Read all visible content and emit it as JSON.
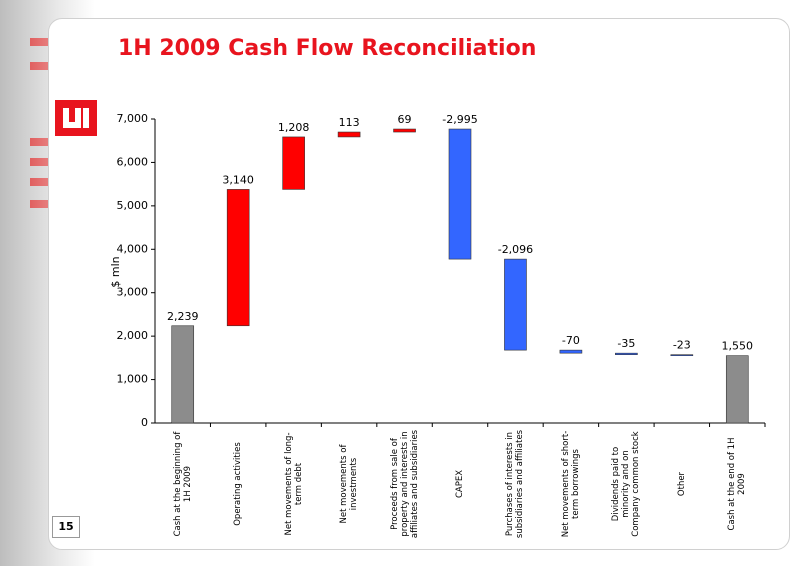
{
  "page_number": "15",
  "chart_data": {
    "type": "waterfall",
    "title": "1H 2009 Cash Flow Reconciliation",
    "y_label": "$ mln",
    "categories": [
      "Cash at the beginning of 1H 2009",
      "Operating activities",
      "Net movements of long-term debt",
      "Net movements of investments",
      "Proceeds from sale of property and interests in affiliates and subsidiaries",
      "CAPEX",
      "Purchases of interests in subsidiaries and affiliates",
      "Net movements of short-term borrowings",
      "Dividends paid to minority and on Company common stock",
      "Other",
      "Cash at the end of 1H 2009"
    ],
    "values": [
      2239,
      3140,
      1208,
      113,
      69,
      -2995,
      -2096,
      -70,
      -35,
      -23,
      1550
    ],
    "value_labels": [
      "2,239",
      "3,140",
      "1,208",
      "113",
      "69",
      "-2,995",
      "-2,096",
      "-70",
      "-35",
      "-23",
      "1,550"
    ],
    "total_color": "#8c8c8c",
    "increase_color": "#ff0000",
    "decrease_color": "#3366ff",
    "ylim": [
      0,
      7000
    ],
    "yticks": [
      0,
      {
        "value": 1000,
        "label": "1,000"
      },
      {
        "value": 2000,
        "label": "2,000"
      },
      {
        "value": 3000,
        "label": "3,000"
      },
      {
        "value": 4000,
        "label": "4,000"
      },
      {
        "value": 5000,
        "label": "5,000"
      },
      {
        "value": 6000,
        "label": "6,000"
      },
      {
        "value": 7000,
        "label": "7,000"
      }
    ]
  }
}
